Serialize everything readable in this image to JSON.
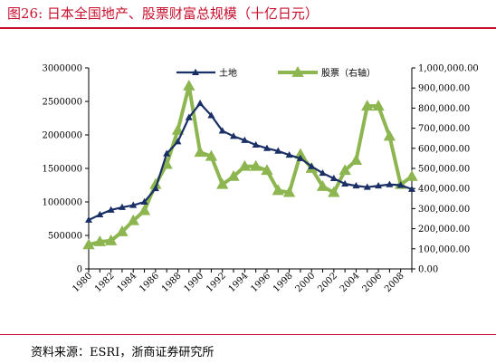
{
  "figure": {
    "title": "图26:  日本全国地产、股票财富总规模（十亿日元）",
    "source": "资料来源：ESRI，浙商证券研究所"
  },
  "colors": {
    "land": "#1a2f66",
    "stocks": "#8db650",
    "accent": "#c8102e"
  },
  "chart_data": {
    "type": "line",
    "x": [
      1980,
      1981,
      1982,
      1983,
      1984,
      1985,
      1986,
      1987,
      1988,
      1989,
      1990,
      1991,
      1992,
      1993,
      1994,
      1995,
      1996,
      1997,
      1998,
      1999,
      2000,
      2001,
      2002,
      2003,
      2004,
      2005,
      2006,
      2007,
      2008,
      2009
    ],
    "x_tick_labels": [
      "1980",
      "1982",
      "1984",
      "1986",
      "1988",
      "1990",
      "1992",
      "1994",
      "1996",
      "1998",
      "2000",
      "2002",
      "2004",
      "2006",
      "2008"
    ],
    "y_left_ticks": [
      "0",
      "500000",
      "1000000",
      "1500000",
      "2000000",
      "2500000",
      "3000000"
    ],
    "y_right_ticks": [
      "0.00",
      "100,000.00",
      "200,000.00",
      "300,000.00",
      "400,000.00",
      "500,000.00",
      "600,000.00",
      "700,000.00",
      "800,000.00",
      "900,000.00",
      "1,000,000.00"
    ],
    "ylim_left": [
      0,
      3000000
    ],
    "ylim_right": [
      0,
      1000000
    ],
    "legend_position": "top",
    "series": [
      {
        "name": "土地",
        "axis": "left",
        "marker": "triangle-small",
        "values": [
          730000,
          810000,
          880000,
          920000,
          950000,
          1000000,
          1200000,
          1720000,
          1900000,
          2260000,
          2470000,
          2290000,
          2060000,
          1980000,
          1920000,
          1850000,
          1800000,
          1760000,
          1700000,
          1650000,
          1530000,
          1430000,
          1350000,
          1270000,
          1240000,
          1220000,
          1240000,
          1260000,
          1250000,
          1190000
        ]
      },
      {
        "name": "股票（右轴）",
        "axis": "right",
        "marker": "triangle-large",
        "values": [
          120000,
          135000,
          140000,
          185000,
          240000,
          290000,
          420000,
          520000,
          690000,
          910000,
          580000,
          560000,
          420000,
          460000,
          510000,
          510000,
          490000,
          390000,
          380000,
          570000,
          500000,
          410000,
          380000,
          490000,
          540000,
          810000,
          810000,
          660000,
          420000,
          460000
        ]
      }
    ]
  }
}
